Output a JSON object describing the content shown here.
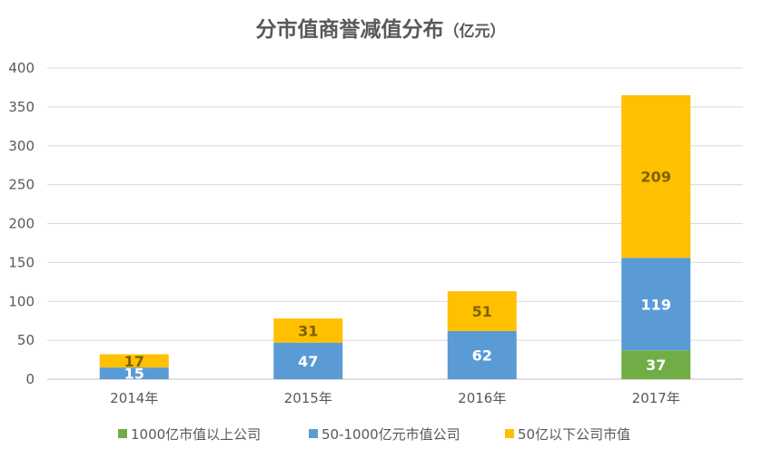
{
  "chart_data": {
    "type": "bar",
    "stacked": true,
    "title": "分市值商誉减值分布",
    "title_unit": "（亿元）",
    "categories": [
      "2014年",
      "2015年",
      "2016年",
      "2017年"
    ],
    "ylim": [
      0,
      400
    ],
    "yticks": [
      0,
      50,
      100,
      150,
      200,
      250,
      300,
      350,
      400
    ],
    "grid": true,
    "legend_position": "bottom",
    "series": [
      {
        "name": "1000亿市值以上公司",
        "color": "#70AD47",
        "label_color": "#ffffff",
        "values": [
          null,
          null,
          null,
          37
        ],
        "labels": [
          "",
          "",
          "",
          "37"
        ]
      },
      {
        "name": "50-1000亿元市值公司",
        "color": "#5B9BD5",
        "label_color": "#ffffff",
        "values": [
          15,
          47,
          62,
          119
        ],
        "labels": [
          "15",
          "47",
          "62",
          "119"
        ]
      },
      {
        "name": "50亿以下公司市值",
        "color": "#FFC000",
        "label_color": "#7F6000",
        "values": [
          17,
          31,
          51,
          209
        ],
        "labels": [
          "17",
          "31",
          "51",
          "209"
        ]
      }
    ]
  }
}
